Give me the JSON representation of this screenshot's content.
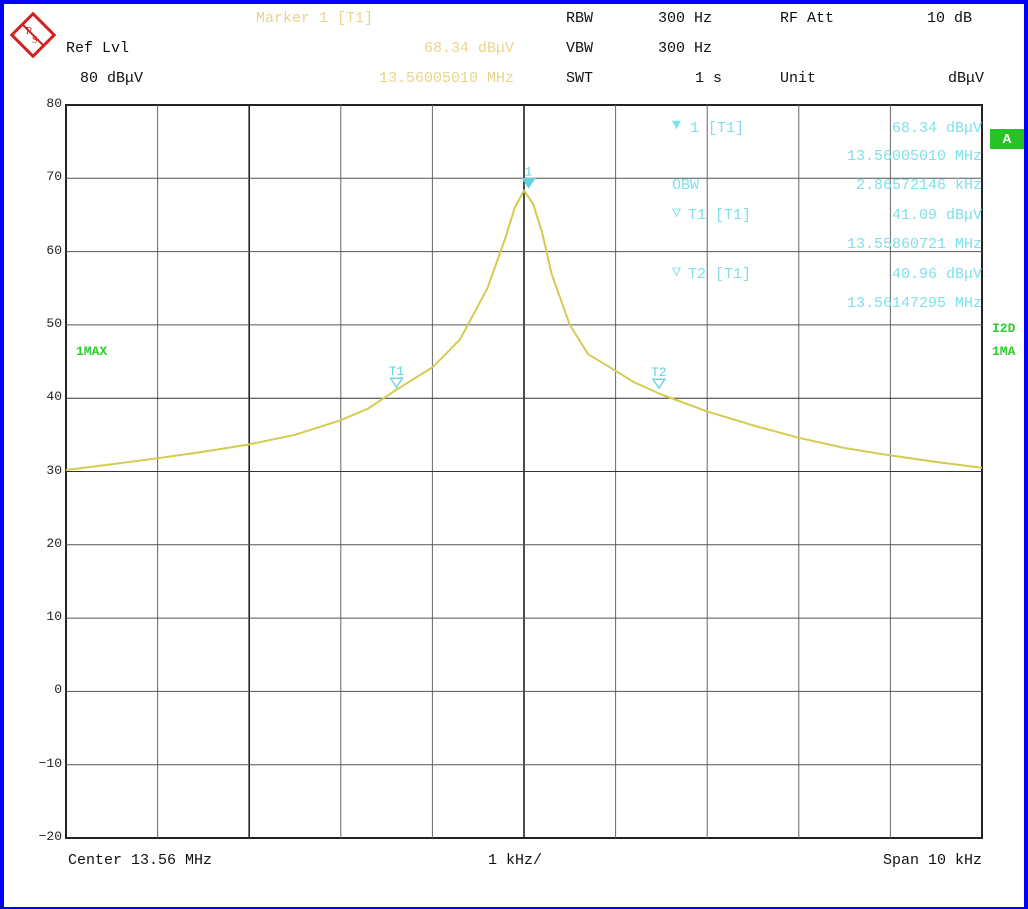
{
  "header": {
    "ref_lvl_label": "Ref Lvl",
    "ref_lvl_value": "80 dBμV",
    "marker_title": "Marker 1 [T1]",
    "marker_level": "68.34 dBμV",
    "marker_freq": "13.56005010 MHz",
    "rbw_label": "RBW",
    "rbw_value": "300 Hz",
    "vbw_label": "VBW",
    "vbw_value": "300 Hz",
    "swt_label": "SWT",
    "swt_value": "1 s",
    "rfatt_label": "RF Att",
    "rfatt_value": "10 dB",
    "unit_label": "Unit",
    "unit_value": "dBμV"
  },
  "side": {
    "trace_mode_left": "1MAX",
    "screen_box": "A",
    "right_label_1": "I2D",
    "right_label_2": "1MA"
  },
  "marker_table": {
    "m1_label": "1 [T1]",
    "m1_level": "68.34 dBμV",
    "m1_freq": "13.56005010 MHz",
    "obw_label": "OBW",
    "obw_value": "2.86572146 kHz",
    "t1_label": "T1 [T1]",
    "t1_level": "41.09 dBμV",
    "t1_freq": "13.55860721 MHz",
    "t2_label": "T2 [T1]",
    "t2_level": "40.96 dBμV",
    "t2_freq": "13.56147295 MHz"
  },
  "footer": {
    "center": "Center 13.56 MHz",
    "div": "1 kHz/",
    "span": "Span 10 kHz"
  },
  "colors": {
    "trace": "#d4cc50",
    "marker": "#5fd3e0",
    "grid": "#333333",
    "border": "#0000ff"
  },
  "chart_data": {
    "type": "line",
    "xlabel": "",
    "ylabel": "",
    "x_unit": "MHz",
    "y_unit": "dBμV",
    "xlim": [
      13.555,
      13.565
    ],
    "ylim": [
      -20,
      80
    ],
    "y_ticks": [
      80,
      70,
      60,
      50,
      40,
      30,
      20,
      10,
      0,
      -10,
      -20
    ],
    "grid": true,
    "series": [
      {
        "x": [
          13.555,
          13.5555,
          13.556,
          13.5565,
          13.557,
          13.5575,
          13.558,
          13.5583,
          13.5586,
          13.559,
          13.5593,
          13.5596,
          13.5598,
          13.5599,
          13.56,
          13.5601,
          13.5602,
          13.5603,
          13.5605,
          13.5607,
          13.5609,
          13.5612,
          13.5615,
          13.562,
          13.5625,
          13.563,
          13.5635,
          13.564,
          13.5645,
          13.565
        ],
        "y": [
          30.2,
          31.0,
          31.8,
          32.7,
          33.7,
          35.0,
          37.0,
          38.6,
          41.1,
          44.2,
          48.0,
          55.0,
          62.0,
          66.0,
          68.34,
          66.5,
          62.5,
          57.0,
          50.0,
          46.0,
          44.5,
          42.2,
          40.5,
          38.2,
          36.3,
          34.6,
          33.2,
          32.2,
          31.3,
          30.5
        ]
      }
    ],
    "markers": [
      {
        "label": "1",
        "x": 13.5600501,
        "y": 68.34
      },
      {
        "label": "T1",
        "x": 13.55860721,
        "y": 41.09
      },
      {
        "label": "T2",
        "x": 13.56147295,
        "y": 40.96
      }
    ]
  }
}
